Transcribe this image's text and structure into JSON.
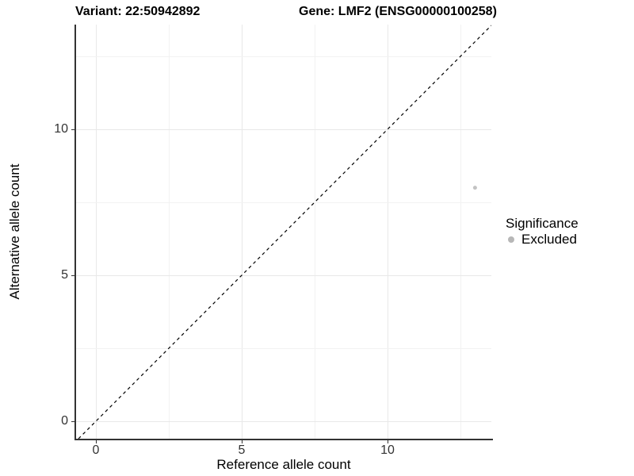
{
  "title": {
    "variant": "Variant: 22:50942892",
    "gene": "Gene: LMF2 (ENSG00000100258)"
  },
  "chart_data": {
    "type": "scatter",
    "title_left": "Variant: 22:50942892",
    "title_right": "Gene: LMF2 (ENSG00000100258)",
    "xlabel": "Reference allele count",
    "ylabel": "Alternative allele count",
    "xlim": [
      -0.7,
      13.6
    ],
    "ylim": [
      -0.7,
      13.6
    ],
    "x_ticks": [
      0,
      5,
      10
    ],
    "y_ticks": [
      0,
      5,
      10
    ],
    "x_tick_labels": [
      "0",
      "5",
      "10"
    ],
    "y_tick_labels": [
      "0",
      "5",
      "10"
    ],
    "minor_grid_x": [
      2.5,
      7.5,
      12.5
    ],
    "minor_grid_y": [
      2.5,
      7.5,
      12.5
    ],
    "grid": "major and minor, light gray on white",
    "legend_position": "right",
    "points": [
      {
        "x": 13,
        "y": 8,
        "significance": "Excluded",
        "color": "#c3c3c3",
        "radius": 2.5
      }
    ],
    "reference_line": {
      "kind": "identity",
      "equation": "y = x",
      "style": "dashed",
      "color": "#000000"
    }
  },
  "legend": {
    "title": "Significance",
    "items": [
      {
        "label": "Excluded",
        "swatch_color": "#b7b7b7"
      }
    ]
  },
  "colors": {
    "background": "#ffffff",
    "axis_line": "#333333",
    "tick_label": "#333333",
    "grid_major": "#e8e8e8",
    "grid_minor": "#f2f2f2",
    "point": "#c3c3c3"
  }
}
